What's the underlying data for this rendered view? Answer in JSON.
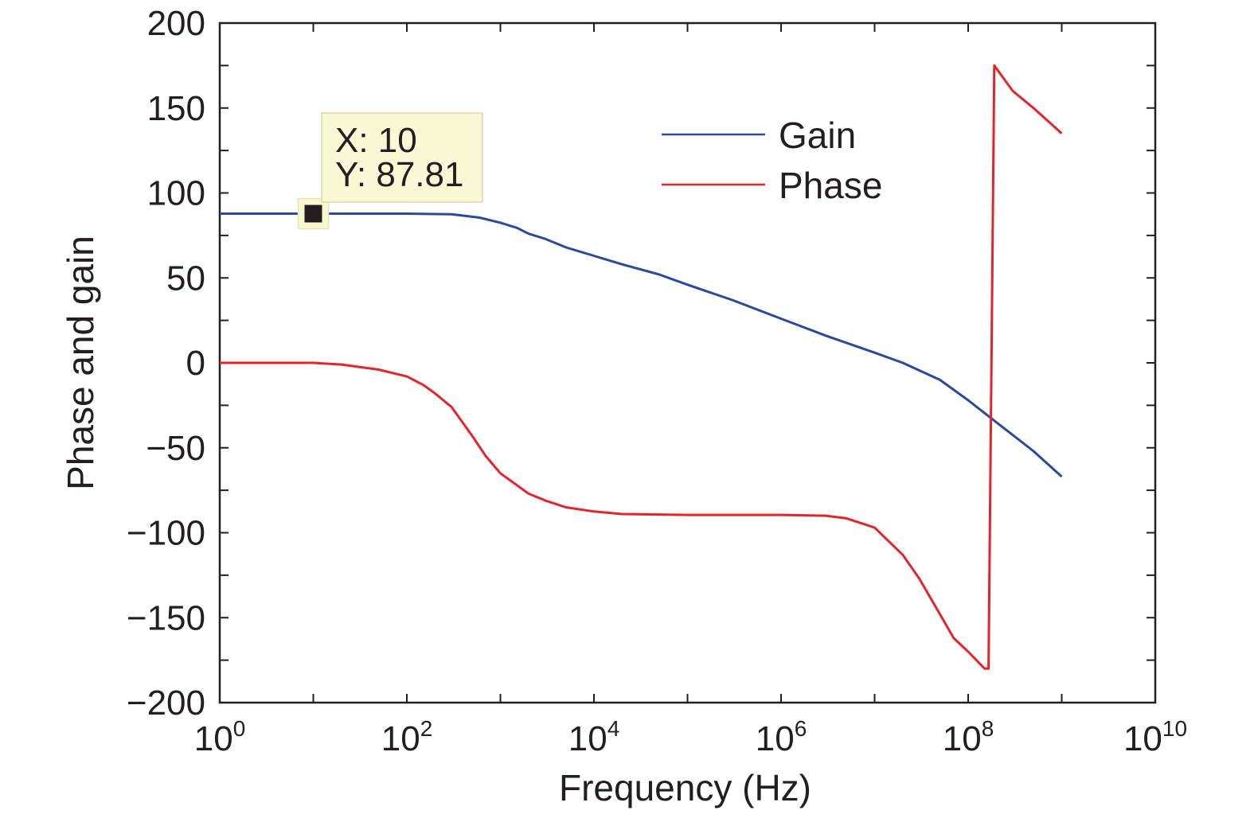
{
  "chart_data": {
    "type": "line",
    "xlabel": "Frequency (Hz)",
    "ylabel": "Phase and gain",
    "xscale": "log",
    "xlim": [
      1,
      10000000000
    ],
    "ylim": [
      -200,
      200
    ],
    "x_ticks": [
      {
        "base": "10",
        "exp": "0",
        "value": 1
      },
      {
        "base": "10",
        "exp": "2",
        "value": 100
      },
      {
        "base": "10",
        "exp": "4",
        "value": 10000
      },
      {
        "base": "10",
        "exp": "6",
        "value": 1000000
      },
      {
        "base": "10",
        "exp": "8",
        "value": 100000000
      },
      {
        "base": "10",
        "exp": "10",
        "value": 10000000000
      }
    ],
    "y_ticks": [
      {
        "label": "200",
        "value": 200
      },
      {
        "label": "150",
        "value": 150
      },
      {
        "label": "100",
        "value": 100
      },
      {
        "label": "50",
        "value": 50
      },
      {
        "label": "0",
        "value": 0
      },
      {
        "label": "−50",
        "value": -50
      },
      {
        "label": "−100",
        "value": -100
      },
      {
        "label": "−150",
        "value": -150
      },
      {
        "label": "−200",
        "value": -200
      }
    ],
    "grid": false,
    "legend_position": "top-right",
    "series": [
      {
        "name": "Gain",
        "color": "#2b4a9c",
        "points": [
          [
            1,
            87.81
          ],
          [
            10,
            87.81
          ],
          [
            100,
            87.81
          ],
          [
            300,
            87.5
          ],
          [
            600,
            85.5
          ],
          [
            1000,
            82.5
          ],
          [
            1500,
            79.5
          ],
          [
            2000,
            76
          ],
          [
            3000,
            73
          ],
          [
            5000,
            68
          ],
          [
            10000,
            63
          ],
          [
            20000,
            58
          ],
          [
            50000,
            52
          ],
          [
            100000,
            46
          ],
          [
            300000,
            37
          ],
          [
            1000000,
            26
          ],
          [
            3000000,
            16
          ],
          [
            10000000,
            6
          ],
          [
            20000000,
            0
          ],
          [
            50000000,
            -10
          ],
          [
            100000000,
            -22
          ],
          [
            200000000,
            -35
          ],
          [
            500000000,
            -52
          ],
          [
            1000000000,
            -67
          ]
        ]
      },
      {
        "name": "Phase",
        "color": "#e3242b",
        "points": [
          [
            1,
            0
          ],
          [
            10,
            0
          ],
          [
            20,
            -1
          ],
          [
            50,
            -4
          ],
          [
            100,
            -8
          ],
          [
            150,
            -13
          ],
          [
            200,
            -18
          ],
          [
            300,
            -26
          ],
          [
            500,
            -43
          ],
          [
            700,
            -55
          ],
          [
            1000,
            -65
          ],
          [
            1500,
            -72
          ],
          [
            2000,
            -77
          ],
          [
            3000,
            -81
          ],
          [
            5000,
            -85
          ],
          [
            10000,
            -87.5
          ],
          [
            20000,
            -89
          ],
          [
            100000,
            -89.5
          ],
          [
            1000000,
            -89.5
          ],
          [
            3000000,
            -90
          ],
          [
            5000000,
            -91.5
          ],
          [
            10000000,
            -97
          ],
          [
            20000000,
            -113
          ],
          [
            30000000,
            -127
          ],
          [
            50000000,
            -148
          ],
          [
            70000000,
            -162
          ],
          [
            100000000,
            -170
          ],
          [
            150000000,
            -180
          ],
          [
            165000000,
            -180
          ],
          [
            190000000,
            175
          ],
          [
            300000000,
            160
          ],
          [
            500000000,
            150
          ],
          [
            1000000000,
            135
          ]
        ]
      }
    ],
    "datatip": {
      "x": 10,
      "y": 87.81,
      "x_text": "X: 10",
      "y_text": "Y: 87.81"
    }
  }
}
